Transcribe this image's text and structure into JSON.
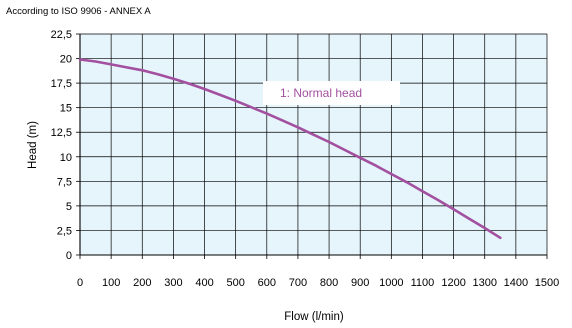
{
  "header_note": "According to ISO 9906 - ANNEX A",
  "chart_data": {
    "type": "line",
    "title": "",
    "xlabel": "Flow (l/min)",
    "ylabel": "Head (m)",
    "xlim": [
      0,
      1500
    ],
    "ylim": [
      0,
      22.5
    ],
    "xticks": [
      "0",
      "100",
      "200",
      "300",
      "400",
      "500",
      "600",
      "700",
      "800",
      "900",
      "1000",
      "1100",
      "1200",
      "1300",
      "1400",
      "1500"
    ],
    "yticks": [
      "0",
      "2,5",
      "5",
      "7,5",
      "10",
      "12,5",
      "15",
      "17,5",
      "20",
      "22,5"
    ],
    "grid": true,
    "plot_background": "#e6f5fc",
    "series": [
      {
        "name": "1: Normal head",
        "color": "#a2509f",
        "x": [
          0,
          50,
          100,
          150,
          200,
          250,
          300,
          350,
          400,
          450,
          500,
          550,
          600,
          650,
          700,
          750,
          800,
          850,
          900,
          950,
          1000,
          1050,
          1100,
          1150,
          1200,
          1250,
          1300,
          1350
        ],
        "y": [
          19.9,
          19.7,
          19.4,
          19.1,
          18.8,
          18.4,
          17.95,
          17.45,
          16.9,
          16.3,
          15.7,
          15.05,
          14.4,
          13.7,
          13.0,
          12.25,
          11.5,
          10.7,
          9.9,
          9.1,
          8.25,
          7.4,
          6.5,
          5.6,
          4.65,
          3.7,
          2.75,
          1.75
        ]
      }
    ]
  }
}
